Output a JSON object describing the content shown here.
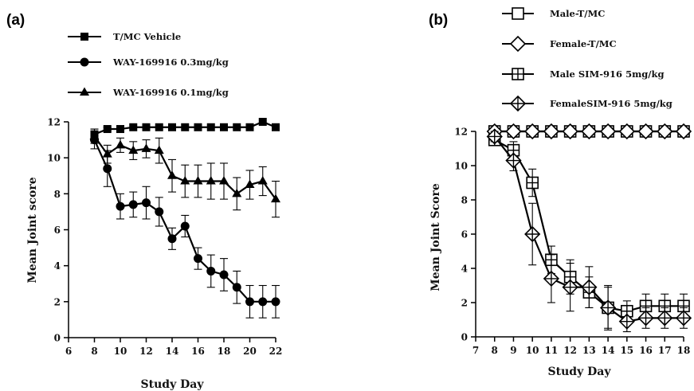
{
  "chart_data": [
    {
      "panel_label": "(a)",
      "type": "line",
      "xlabel": "Study Day",
      "ylabel": "Mean Joint score",
      "xlim": [
        6,
        22
      ],
      "ylim": [
        0,
        12
      ],
      "xticks": [
        6,
        8,
        10,
        12,
        14,
        16,
        18,
        20,
        22
      ],
      "yticks": [
        0,
        2,
        4,
        6,
        8,
        10,
        12
      ],
      "grid": false,
      "legend_position": "top",
      "x": [
        8,
        9,
        10,
        11,
        12,
        13,
        14,
        15,
        16,
        17,
        18,
        19,
        20,
        21,
        22
      ],
      "series": [
        {
          "name": "T/MC Vehicle",
          "marker": "square-filled",
          "values": [
            11.3,
            11.6,
            11.6,
            11.7,
            11.7,
            11.7,
            11.7,
            11.7,
            11.7,
            11.7,
            11.7,
            11.7,
            11.7,
            12.0,
            11.7
          ],
          "errors": [
            0.3,
            0.1,
            0,
            0,
            0,
            0,
            0,
            0,
            0,
            0,
            0,
            0,
            0,
            0,
            0
          ]
        },
        {
          "name": "WAY-169916 0.3mg/kg",
          "marker": "circle-filled",
          "values": [
            11.0,
            9.4,
            7.3,
            7.4,
            7.5,
            7.0,
            5.5,
            6.2,
            4.4,
            3.7,
            3.5,
            2.8,
            2.0,
            2.0,
            2.0
          ],
          "errors": [
            0.5,
            1.0,
            0.7,
            0.7,
            0.9,
            0.8,
            0.6,
            0.6,
            0.6,
            0.9,
            0.9,
            0.9,
            0.9,
            0.9,
            0.9
          ]
        },
        {
          "name": "WAY-169916 0.1mg/kg",
          "marker": "triangle-filled",
          "values": [
            11.2,
            10.2,
            10.7,
            10.4,
            10.5,
            10.4,
            9.0,
            8.7,
            8.7,
            8.7,
            8.7,
            8.0,
            8.5,
            8.7,
            7.7
          ],
          "errors": [
            0.4,
            0.5,
            0.4,
            0.5,
            0.5,
            0.7,
            0.9,
            0.9,
            0.9,
            1.0,
            1.0,
            0.9,
            0.8,
            0.8,
            1.0
          ]
        }
      ]
    },
    {
      "panel_label": "(b)",
      "type": "line",
      "xlabel": "Study Day",
      "ylabel": "Mean Joint Score",
      "xlim": [
        7,
        18
      ],
      "ylim": [
        0,
        12
      ],
      "xticks": [
        7,
        8,
        9,
        10,
        11,
        12,
        13,
        14,
        15,
        16,
        17,
        18
      ],
      "yticks": [
        0,
        2,
        4,
        6,
        8,
        10,
        12
      ],
      "grid": false,
      "legend_position": "top",
      "x": [
        8,
        9,
        10,
        11,
        12,
        13,
        14,
        15,
        16,
        17,
        18
      ],
      "series": [
        {
          "name": "Male-T/MC",
          "marker": "square-open",
          "values": [
            12,
            12,
            12,
            12,
            12,
            12,
            12,
            12,
            12,
            12,
            12
          ],
          "errors": [
            0,
            0,
            0,
            0,
            0,
            0,
            0,
            0,
            0,
            0,
            0
          ]
        },
        {
          "name": "Female-T/MC",
          "marker": "diamond-open",
          "values": [
            12,
            12,
            12,
            12,
            12,
            12,
            12,
            12,
            12,
            12,
            12
          ],
          "errors": [
            0,
            0,
            0,
            0,
            0,
            0,
            0,
            0,
            0,
            0,
            0
          ]
        },
        {
          "name": "Male SIM-916 5mg/kg",
          "marker": "square-plus",
          "values": [
            11.5,
            10.9,
            9.0,
            4.5,
            3.5,
            2.6,
            1.7,
            1.5,
            1.8,
            1.8,
            1.8
          ],
          "errors": [
            0.3,
            0.5,
            0.8,
            0.8,
            1.0,
            0.9,
            1.2,
            0.6,
            0.7,
            0.7,
            0.7
          ]
        },
        {
          "name": "FemaleSIM-916 5mg/kg",
          "marker": "diamond-plus",
          "values": [
            11.7,
            10.3,
            6.0,
            3.4,
            2.9,
            2.9,
            1.7,
            0.9,
            1.1,
            1.1,
            1.1
          ],
          "errors": [
            0.3,
            0.6,
            1.8,
            1.4,
            1.4,
            1.2,
            1.3,
            0.6,
            0.6,
            0.6,
            0.6
          ]
        }
      ]
    }
  ]
}
